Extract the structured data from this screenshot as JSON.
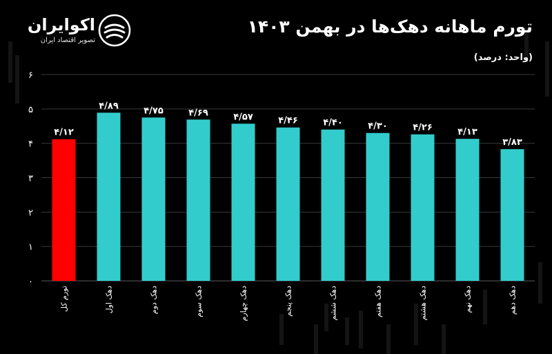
{
  "header": {
    "title": "تورم ماهانه دهک‌ها در بهمن ۱۴۰۳",
    "unit_note": "(واحد: درصد)"
  },
  "logo": {
    "name": "اکوایران",
    "tagline": "تصویر اقتصاد ایران",
    "icon": "swirl-logo-icon"
  },
  "colors": {
    "background": "#000000",
    "bar_default": "#33cccc",
    "bar_highlight": "#ff0000",
    "gridline": "#3a3a3a",
    "text": "#ffffff"
  },
  "chart_data": {
    "type": "bar",
    "categories": [
      "تورم کل",
      "دهک اول",
      "دهک دوم",
      "دهک سوم",
      "دهک چهارم",
      "دهک پنجم",
      "دهک ششم",
      "دهک هفتم",
      "دهک هشتم",
      "دهک نهم",
      "دهک دهم"
    ],
    "values": [
      4.12,
      4.89,
      4.75,
      4.69,
      4.57,
      4.46,
      4.4,
      4.3,
      4.26,
      4.13,
      3.83
    ],
    "value_labels": [
      "۴/۱۲",
      "۴/۸۹",
      "۴/۷۵",
      "۴/۶۹",
      "۴/۵۷",
      "۴/۴۶",
      "۴/۴۰",
      "۴/۳۰",
      "۴/۲۶",
      "۴/۱۳",
      "۳/۸۳"
    ],
    "highlight_index": 0,
    "ylim": [
      0,
      6
    ],
    "yticks": [
      0,
      1,
      2,
      3,
      4,
      5,
      6
    ],
    "ytick_labels": [
      "۰",
      "۱",
      "۲",
      "۳",
      "۴",
      "۵",
      "۶"
    ],
    "grid": true,
    "xlabel_rotation": "vertical"
  }
}
